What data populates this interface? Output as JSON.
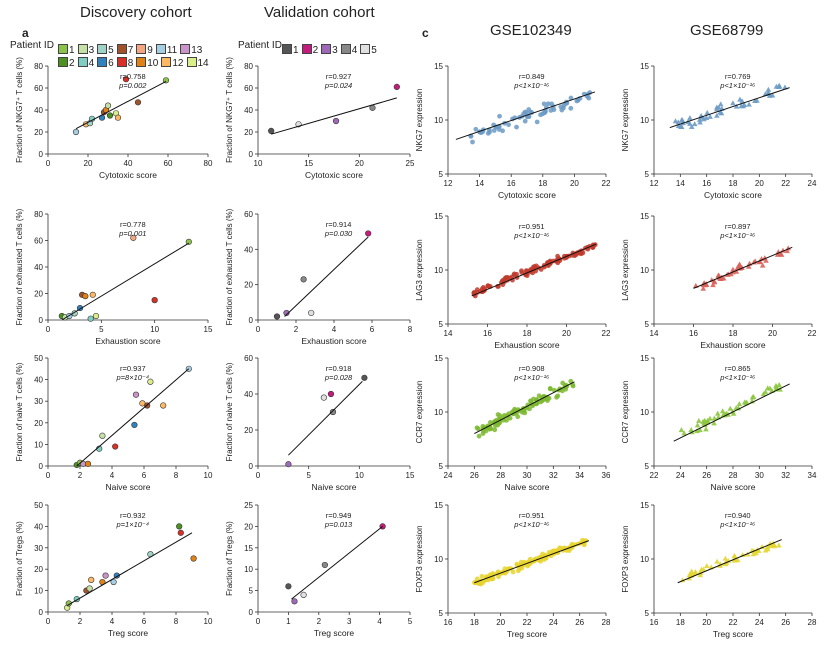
{
  "panel_labels": {
    "a": "a",
    "c": "c"
  },
  "headers": {
    "discovery": "Discovery cohort",
    "validation": "Validation cohort",
    "gse1": "GSE102349",
    "gse2": "GSE68799"
  },
  "legend_discovery": {
    "label": "Patient ID",
    "items": [
      {
        "id": "1",
        "color": "#8bc34a"
      },
      {
        "id": "3",
        "color": "#c5e1a5"
      },
      {
        "id": "5",
        "color": "#9fd3c7"
      },
      {
        "id": "7",
        "color": "#a0522d"
      },
      {
        "id": "9",
        "color": "#f4a582"
      },
      {
        "id": "11",
        "color": "#a6cee3"
      },
      {
        "id": "13",
        "color": "#c994c7"
      },
      {
        "id": "2",
        "color": "#4d9221"
      },
      {
        "id": "4",
        "color": "#80cdc1"
      },
      {
        "id": "6",
        "color": "#3182bd"
      },
      {
        "id": "8",
        "color": "#d73027"
      },
      {
        "id": "10",
        "color": "#e08214"
      },
      {
        "id": "12",
        "color": "#fdb863"
      },
      {
        "id": "14",
        "color": "#d9ef8b"
      }
    ]
  },
  "legend_validation": {
    "label": "Patient ID",
    "items": [
      {
        "id": "1",
        "color": "#555555"
      },
      {
        "id": "2",
        "color": "#c51b7d"
      },
      {
        "id": "3",
        "color": "#9e6ab8"
      },
      {
        "id": "4",
        "color": "#888888"
      },
      {
        "id": "5",
        "color": "#e0e0e0"
      }
    ]
  },
  "chart_data": [
    {
      "id": "d1",
      "type": "scatter",
      "ylabel": "Fraction of NKG7⁺ T cells (%)",
      "xlabel": "Cytotoxic score",
      "xlim": [
        0,
        80
      ],
      "xticks": [
        0,
        20,
        40,
        60,
        80
      ],
      "ylim": [
        0,
        80
      ],
      "yticks": [
        0,
        20,
        40,
        60,
        80
      ],
      "r": "r=0.758",
      "p": "p=0.002",
      "points": [
        {
          "x": 14,
          "y": 20,
          "c": "#a6cee3"
        },
        {
          "x": 19,
          "y": 27,
          "c": "#fdb863"
        },
        {
          "x": 21,
          "y": 28,
          "c": "#9fd3c7"
        },
        {
          "x": 22,
          "y": 32,
          "c": "#80cdc1"
        },
        {
          "x": 27,
          "y": 33,
          "c": "#3182bd"
        },
        {
          "x": 28,
          "y": 38,
          "c": "#a0522d"
        },
        {
          "x": 29,
          "y": 40,
          "c": "#e08214"
        },
        {
          "x": 30,
          "y": 44,
          "c": "#c5e1a5"
        },
        {
          "x": 31,
          "y": 35,
          "c": "#4d9221"
        },
        {
          "x": 34,
          "y": 37,
          "c": "#d9ef8b"
        },
        {
          "x": 35,
          "y": 33,
          "c": "#fdb863"
        },
        {
          "x": 39,
          "y": 68,
          "c": "#d73027"
        },
        {
          "x": 45,
          "y": 47,
          "c": "#a0522d"
        },
        {
          "x": 59,
          "y": 67,
          "c": "#8bc34a"
        }
      ],
      "fit": [
        [
          14,
          23
        ],
        [
          59,
          66
        ]
      ]
    },
    {
      "id": "v1",
      "type": "scatter",
      "ylabel": "Fraction of NKG7⁺ T cells (%)",
      "xlabel": "Cytotoxic score",
      "xlim": [
        10,
        25
      ],
      "xticks": [
        10,
        15,
        20,
        25
      ],
      "ylim": [
        0,
        80
      ],
      "yticks": [
        0,
        20,
        40,
        60,
        80
      ],
      "r": "r=0.927",
      "p": "p=0.024",
      "points": [
        {
          "x": 11.3,
          "y": 21,
          "c": "#555555"
        },
        {
          "x": 14,
          "y": 27,
          "c": "#e0e0e0"
        },
        {
          "x": 17.7,
          "y": 30,
          "c": "#9e6ab8"
        },
        {
          "x": 21.3,
          "y": 42,
          "c": "#888888"
        },
        {
          "x": 23.7,
          "y": 61,
          "c": "#c51b7d"
        }
      ],
      "fit": [
        [
          11.3,
          18
        ],
        [
          23.7,
          51
        ]
      ]
    },
    {
      "id": "g1a",
      "type": "scatter",
      "ylabel": "NKG7 expression",
      "xlabel": "Cytotoxic score",
      "xlim": [
        12,
        22
      ],
      "xticks": [
        12,
        14,
        16,
        18,
        20,
        22
      ],
      "ylim": [
        5,
        15
      ],
      "yticks": [
        5,
        10,
        15
      ],
      "r": "r=0.849",
      "p": "p<1×10⁻¹⁶",
      "color": "#6b9ac4",
      "marker": "circle",
      "gen": {
        "n": 70,
        "x0": 13,
        "x1": 21,
        "y0": 8.5,
        "y1": 12.2,
        "noise": 0.75,
        "seed": 11
      },
      "fit": [
        [
          12.5,
          8.2
        ],
        [
          21.3,
          12.6
        ]
      ]
    },
    {
      "id": "g2a",
      "type": "scatter",
      "ylabel": "NKG7 expression",
      "xlabel": "Cytotoxic score",
      "xlim": [
        12,
        24
      ],
      "xticks": [
        12,
        14,
        16,
        18,
        20,
        22,
        24
      ],
      "ylim": [
        5,
        15
      ],
      "yticks": [
        5,
        10,
        15
      ],
      "r": "r=0.769",
      "p": "p<1×10⁻¹⁶",
      "color": "#6b9ac4",
      "marker": "triangle",
      "gen": {
        "n": 50,
        "x0": 13.5,
        "x1": 22,
        "y0": 9.4,
        "y1": 13,
        "noise": 0.7,
        "seed": 23
      },
      "fit": [
        [
          13.2,
          9.3
        ],
        [
          22.3,
          13.0
        ]
      ]
    },
    {
      "id": "d2",
      "type": "scatter",
      "ylabel": "Fraction of exhausted T cells (%)",
      "xlabel": "Exhaustion score",
      "xlim": [
        0,
        15
      ],
      "xticks": [
        0,
        5,
        10,
        15
      ],
      "ylim": [
        0,
        80
      ],
      "yticks": [
        0,
        20,
        40,
        60,
        80
      ],
      "r": "r=0.778",
      "p": "p=0.001",
      "points": [
        {
          "x": 1.3,
          "y": 3,
          "c": "#4d9221"
        },
        {
          "x": 1.6,
          "y": 2,
          "c": "#c5e1a5"
        },
        {
          "x": 2,
          "y": 3,
          "c": "#a6cee3"
        },
        {
          "x": 2.5,
          "y": 5,
          "c": "#9fd3c7"
        },
        {
          "x": 3,
          "y": 9,
          "c": "#3182bd"
        },
        {
          "x": 3.2,
          "y": 19,
          "c": "#a0522d"
        },
        {
          "x": 3.5,
          "y": 18,
          "c": "#e08214"
        },
        {
          "x": 4,
          "y": 1,
          "c": "#80cdc1"
        },
        {
          "x": 4.2,
          "y": 19,
          "c": "#fdb863"
        },
        {
          "x": 4.5,
          "y": 3,
          "c": "#d9ef8b"
        },
        {
          "x": 8,
          "y": 62,
          "c": "#f4a582"
        },
        {
          "x": 10,
          "y": 15,
          "c": "#d73027"
        },
        {
          "x": 13.2,
          "y": 59,
          "c": "#8bc34a"
        }
      ],
      "fit": [
        [
          1.3,
          0
        ],
        [
          13.2,
          58
        ]
      ]
    },
    {
      "id": "v2",
      "type": "scatter",
      "ylabel": "Fraction of exhausted T cells (%)",
      "xlabel": "Exhaustion score",
      "xlim": [
        0,
        8
      ],
      "xticks": [
        0,
        2,
        4,
        6,
        8
      ],
      "ylim": [
        0,
        60
      ],
      "yticks": [
        0,
        20,
        40,
        60
      ],
      "r": "r=0.914",
      "p": "p=0.030",
      "points": [
        {
          "x": 1,
          "y": 2,
          "c": "#555555"
        },
        {
          "x": 1.5,
          "y": 4,
          "c": "#9e6ab8"
        },
        {
          "x": 2.4,
          "y": 23,
          "c": "#888888"
        },
        {
          "x": 2.8,
          "y": 4,
          "c": "#e0e0e0"
        },
        {
          "x": 5.8,
          "y": 49,
          "c": "#c51b7d"
        }
      ],
      "fit": [
        [
          1.4,
          2
        ],
        [
          5.8,
          47
        ]
      ]
    },
    {
      "id": "g1b",
      "type": "scatter",
      "ylabel": "LAG3 expression",
      "xlabel": "Exhaustion score",
      "xlim": [
        14,
        22
      ],
      "xticks": [
        14,
        16,
        18,
        20,
        22
      ],
      "ylim": [
        5,
        15
      ],
      "yticks": [
        5,
        10,
        15
      ],
      "r": "r=0.951",
      "p": "p<1×10⁻¹⁶",
      "color": "#c0392b",
      "marker": "circle",
      "gen": {
        "n": 110,
        "x0": 15.2,
        "x1": 21.5,
        "y0": 7.8,
        "y1": 12.3,
        "noise": 0.3,
        "seed": 37
      },
      "fit": [
        [
          15.2,
          7.6
        ],
        [
          21.5,
          12.4
        ]
      ]
    },
    {
      "id": "g2b",
      "type": "scatter",
      "ylabel": "LAG3 expression",
      "xlabel": "Exhaustion score",
      "xlim": [
        14,
        22
      ],
      "xticks": [
        14,
        16,
        18,
        20,
        22
      ],
      "ylim": [
        5,
        15
      ],
      "yticks": [
        5,
        10,
        15
      ],
      "r": "r=0.897",
      "p": "p<1×10⁻¹⁶",
      "color": "#d9625a",
      "marker": "triangle",
      "gen": {
        "n": 50,
        "x0": 16,
        "x1": 21,
        "y0": 8.3,
        "y1": 12,
        "noise": 0.4,
        "seed": 41
      },
      "fit": [
        [
          16,
          8.3
        ],
        [
          21,
          12.1
        ]
      ]
    },
    {
      "id": "d3",
      "type": "scatter",
      "ylabel": "Fraction of naive T cells (%)",
      "xlabel": "Naive score",
      "xlim": [
        0,
        10
      ],
      "xticks": [
        0,
        2,
        4,
        6,
        8,
        10
      ],
      "ylim": [
        0,
        50
      ],
      "yticks": [
        0,
        10,
        20,
        30,
        40,
        50
      ],
      "r": "r=0.937",
      "p": "p=8×10⁻⁴",
      "points": [
        {
          "x": 1.8,
          "y": 0.5,
          "c": "#4d9221"
        },
        {
          "x": 2,
          "y": 1.5,
          "c": "#8bc34a"
        },
        {
          "x": 2.2,
          "y": 1,
          "c": "#c994c7"
        },
        {
          "x": 2.5,
          "y": 1,
          "c": "#e08214"
        },
        {
          "x": 3.2,
          "y": 8,
          "c": "#80cdc1"
        },
        {
          "x": 3.4,
          "y": 14,
          "c": "#c5e1a5"
        },
        {
          "x": 4.2,
          "y": 9,
          "c": "#d73027"
        },
        {
          "x": 5.4,
          "y": 19,
          "c": "#3182bd"
        },
        {
          "x": 5.5,
          "y": 33,
          "c": "#c994c7"
        },
        {
          "x": 5.9,
          "y": 29,
          "c": "#fdb863"
        },
        {
          "x": 6.2,
          "y": 28,
          "c": "#a0522d"
        },
        {
          "x": 6.4,
          "y": 39,
          "c": "#d9ef8b"
        },
        {
          "x": 7.2,
          "y": 28,
          "c": "#fdb863"
        },
        {
          "x": 8.8,
          "y": 45,
          "c": "#a6cee3"
        }
      ],
      "fit": [
        [
          1.8,
          0
        ],
        [
          8.8,
          45
        ]
      ]
    },
    {
      "id": "v3",
      "type": "scatter",
      "ylabel": "Fraction of naive T cells (%)",
      "xlabel": "Naive score",
      "xlim": [
        0,
        15
      ],
      "xticks": [
        0,
        5,
        10,
        15
      ],
      "ylim": [
        0,
        60
      ],
      "yticks": [
        0,
        20,
        40,
        60
      ],
      "r": "r=0.918",
      "p": "p=0.028",
      "points": [
        {
          "x": 3,
          "y": 1,
          "c": "#9e6ab8"
        },
        {
          "x": 6.5,
          "y": 38,
          "c": "#e0e0e0"
        },
        {
          "x": 7.2,
          "y": 40,
          "c": "#c51b7d"
        },
        {
          "x": 7.4,
          "y": 30,
          "c": "#888888"
        },
        {
          "x": 10.5,
          "y": 49,
          "c": "#555555"
        }
      ],
      "fit": [
        [
          3,
          6
        ],
        [
          10.3,
          47
        ]
      ]
    },
    {
      "id": "g1c",
      "type": "scatter",
      "ylabel": "CCR7 expression",
      "xlabel": "Naive score",
      "xlim": [
        24,
        36
      ],
      "xticks": [
        24,
        26,
        28,
        30,
        32,
        34,
        36
      ],
      "ylim": [
        5,
        15
      ],
      "yticks": [
        5,
        10,
        15
      ],
      "r": "r=0.908",
      "p": "p<1×10⁻¹⁶",
      "color": "#7cb82f",
      "marker": "circle",
      "gen": {
        "n": 110,
        "x0": 26,
        "x1": 33.5,
        "y0": 8,
        "y1": 12.7,
        "noise": 0.5,
        "seed": 53
      },
      "fit": [
        [
          26,
          8.0
        ],
        [
          33.6,
          12.8
        ]
      ]
    },
    {
      "id": "g2c",
      "type": "scatter",
      "ylabel": "CCR7 expression",
      "xlabel": "Naive score",
      "xlim": [
        22,
        34
      ],
      "xticks": [
        22,
        24,
        26,
        28,
        30,
        32,
        34
      ],
      "ylim": [
        5,
        15
      ],
      "yticks": [
        5,
        10,
        15
      ],
      "r": "r=0.865",
      "p": "p<1×10⁻¹⁶",
      "color": "#8cc63f",
      "marker": "triangle",
      "gen": {
        "n": 50,
        "x0": 24,
        "x1": 32,
        "y0": 7.8,
        "y1": 12.5,
        "noise": 0.55,
        "seed": 61
      },
      "fit": [
        [
          23.5,
          7.3
        ],
        [
          32.3,
          12.6
        ]
      ]
    },
    {
      "id": "d4",
      "type": "scatter",
      "ylabel": "Fraction of Tregs (%)",
      "xlabel": "Treg score",
      "xlim": [
        0,
        10
      ],
      "xticks": [
        0,
        2,
        4,
        6,
        8,
        10
      ],
      "ylim": [
        0,
        50
      ],
      "yticks": [
        0,
        10,
        20,
        30,
        40,
        50
      ],
      "r": "r=0.932",
      "p": "p=1×10⁻⁴",
      "points": [
        {
          "x": 1.2,
          "y": 2,
          "c": "#d9ef8b"
        },
        {
          "x": 1.3,
          "y": 4,
          "c": "#8bc34a"
        },
        {
          "x": 1.8,
          "y": 6,
          "c": "#80cdc1"
        },
        {
          "x": 2.4,
          "y": 10,
          "c": "#a0522d"
        },
        {
          "x": 2.6,
          "y": 11,
          "c": "#c5e1a5"
        },
        {
          "x": 2.7,
          "y": 15,
          "c": "#fdb863"
        },
        {
          "x": 3.4,
          "y": 14,
          "c": "#e08214"
        },
        {
          "x": 3.6,
          "y": 17,
          "c": "#c994c7"
        },
        {
          "x": 4.1,
          "y": 14,
          "c": "#a6cee3"
        },
        {
          "x": 4.3,
          "y": 17,
          "c": "#3182bd"
        },
        {
          "x": 6.4,
          "y": 27,
          "c": "#9fd3c7"
        },
        {
          "x": 8.2,
          "y": 40,
          "c": "#4d9221"
        },
        {
          "x": 8.3,
          "y": 37,
          "c": "#d73027"
        },
        {
          "x": 9.1,
          "y": 25,
          "c": "#e08214"
        }
      ],
      "fit": [
        [
          1.2,
          3
        ],
        [
          9.0,
          37
        ]
      ]
    },
    {
      "id": "v4",
      "type": "scatter",
      "ylabel": "Fraction of Tregs (%)",
      "xlabel": "Treg score",
      "xlim": [
        0,
        5
      ],
      "xticks": [
        0,
        1,
        2,
        3,
        4,
        5
      ],
      "ylim": [
        0,
        25
      ],
      "yticks": [
        0,
        5,
        10,
        15,
        20,
        25
      ],
      "r": "r=0.949",
      "p": "p=0.013",
      "points": [
        {
          "x": 1,
          "y": 6,
          "c": "#555555"
        },
        {
          "x": 1.2,
          "y": 2.5,
          "c": "#9e6ab8"
        },
        {
          "x": 1.5,
          "y": 4,
          "c": "#e0e0e0"
        },
        {
          "x": 2.2,
          "y": 11,
          "c": "#888888"
        },
        {
          "x": 4.1,
          "y": 20,
          "c": "#c51b7d"
        }
      ],
      "fit": [
        [
          1.1,
          3
        ],
        [
          4.1,
          20
        ]
      ]
    },
    {
      "id": "g1d",
      "type": "scatter",
      "ylabel": "FOXP3 expression",
      "xlabel": "Treg score",
      "xlim": [
        16,
        28
      ],
      "xticks": [
        16,
        18,
        20,
        22,
        24,
        26,
        28
      ],
      "ylim": [
        5,
        15
      ],
      "yticks": [
        5,
        10,
        15
      ],
      "r": "r=0.951",
      "p": "p<1×10⁻¹⁶",
      "color": "#e8d32a",
      "marker": "circle",
      "gen": {
        "n": 120,
        "x0": 18,
        "x1": 26.5,
        "y0": 7.8,
        "y1": 11.6,
        "noise": 0.35,
        "seed": 71
      },
      "fit": [
        [
          18,
          7.8
        ],
        [
          26.7,
          11.7
        ]
      ]
    },
    {
      "id": "g2d",
      "type": "scatter",
      "ylabel": "FOXP3 expression",
      "xlabel": "Treg score",
      "xlim": [
        16,
        28
      ],
      "xticks": [
        16,
        18,
        20,
        22,
        24,
        26,
        28
      ],
      "ylim": [
        5,
        15
      ],
      "yticks": [
        5,
        10,
        15
      ],
      "r": "r=0.940",
      "p": "p<1×10⁻¹⁶",
      "color": "#e3d631",
      "marker": "triangle",
      "gen": {
        "n": 50,
        "x0": 18,
        "x1": 25.5,
        "y0": 8.2,
        "y1": 11.5,
        "noise": 0.35,
        "seed": 83
      },
      "fit": [
        [
          17.8,
          7.8
        ],
        [
          25.7,
          11.8
        ]
      ]
    }
  ]
}
